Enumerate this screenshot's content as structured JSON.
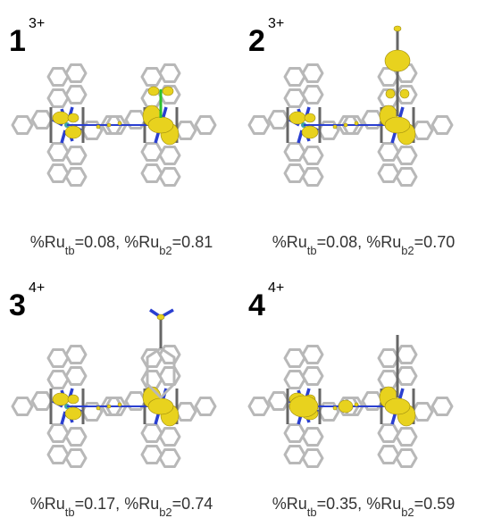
{
  "panels": [
    {
      "number": "1",
      "charge": "3+",
      "caption": [
        "%Ru",
        "tb",
        "=0.08, %Ru",
        "b2",
        "=0.81"
      ]
    },
    {
      "number": "2",
      "charge": "3+",
      "caption": [
        "%Ru",
        "tb",
        "=0.08, %Ru",
        "b2",
        "=0.70"
      ]
    },
    {
      "number": "3",
      "charge": "4+",
      "caption": [
        "%Ru",
        "tb",
        "=0.17, %Ru",
        "b2",
        "=0.74"
      ]
    },
    {
      "number": "4",
      "charge": "4+",
      "caption": [
        "%Ru",
        "tb",
        "=0.35, %Ru",
        "b2",
        "=0.59"
      ]
    }
  ]
}
